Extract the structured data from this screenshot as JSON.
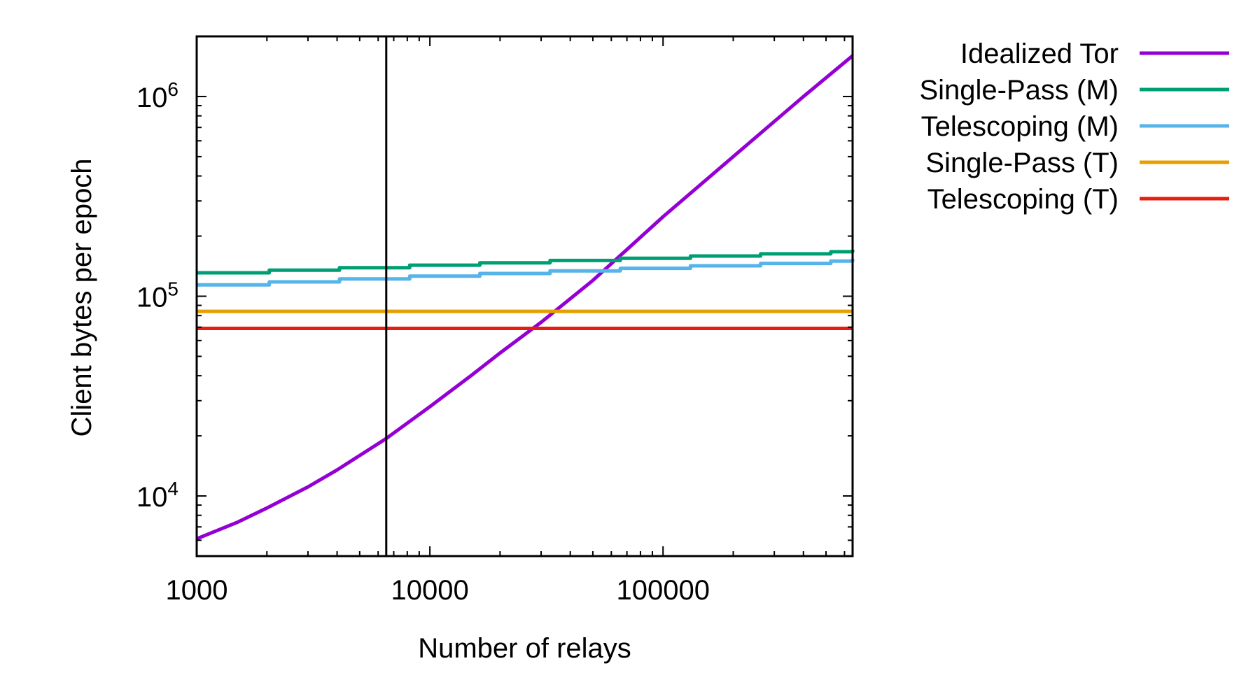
{
  "chart_data": {
    "type": "line",
    "title": "",
    "xlabel": "Number of relays",
    "ylabel": "Client bytes per epoch",
    "xscale": "log",
    "yscale": "log",
    "xlim": [
      1000,
      650000
    ],
    "ylim": [
      5000,
      2000000
    ],
    "x_ticks": [
      {
        "value": 1000,
        "label": "1000"
      },
      {
        "value": 10000,
        "label": "10000"
      },
      {
        "value": 100000,
        "label": "100000"
      }
    ],
    "y_ticks": [
      {
        "value": 10000,
        "base": "10",
        "exp": "4"
      },
      {
        "value": 100000,
        "base": "10",
        "exp": "5"
      },
      {
        "value": 1000000,
        "base": "10",
        "exp": "6"
      }
    ],
    "grid": false,
    "legend_position": "outside-right-top",
    "reference_line": {
      "x": 6500
    },
    "series": [
      {
        "name": "Idealized Tor",
        "color": "#9400d3",
        "kind": "curve",
        "x": [
          1000,
          1500,
          2000,
          3000,
          4000,
          6500,
          10000,
          15000,
          20000,
          30000,
          50000,
          100000,
          200000,
          400000,
          650000
        ],
        "y": [
          6100,
          7400,
          8700,
          11100,
          13500,
          19400,
          28000,
          40000,
          52000,
          74000,
          120000,
          250000,
          500000,
          1000000,
          1600000
        ]
      },
      {
        "name": "Single-Pass (M)",
        "color": "#009e73",
        "kind": "step",
        "x": [
          1000,
          2048,
          4096,
          8192,
          16384,
          32768,
          65536,
          131072,
          262144,
          524288,
          650000
        ],
        "y": [
          131000,
          135000,
          139000,
          143000,
          147000,
          151000,
          155000,
          159000,
          163000,
          167000,
          171000
        ]
      },
      {
        "name": "Telescoping (M)",
        "color": "#56b4e9",
        "kind": "step",
        "x": [
          1000,
          2048,
          4096,
          8192,
          16384,
          32768,
          65536,
          131072,
          262144,
          524288,
          650000
        ],
        "y": [
          114000,
          118000,
          122000,
          126000,
          130000,
          134000,
          138000,
          142000,
          146000,
          150000,
          154000
        ]
      },
      {
        "name": "Single-Pass (T)",
        "color": "#e69f00",
        "kind": "flat",
        "x": [
          1000,
          650000
        ],
        "y": [
          84000,
          84000
        ]
      },
      {
        "name": "Telescoping (T)",
        "color": "#e51e10",
        "kind": "flat",
        "x": [
          1000,
          650000
        ],
        "y": [
          69000,
          69000
        ]
      }
    ]
  }
}
